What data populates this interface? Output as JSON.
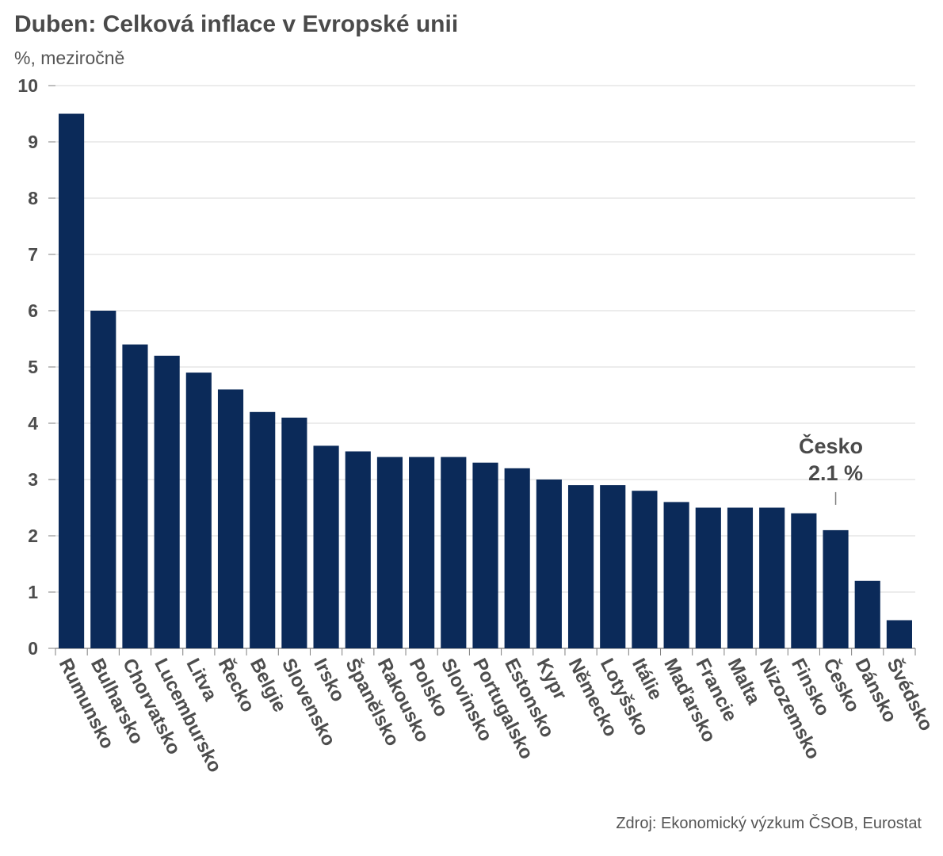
{
  "title": "Duben: Celková inflace v Evropské unii",
  "subtitle": "%, meziročně",
  "source": "Zdroj: Ekonomický výzkum ČSOB, Eurostat",
  "colors": {
    "bar": "#0b2a59",
    "grid": "#d9d9d9",
    "axis": "#7f7f7f",
    "text": "#4d4d4d"
  },
  "chart_data": {
    "type": "bar",
    "title": "Duben: Celková inflace v Evropské unii",
    "subtitle": "%, meziročně",
    "xlabel": "",
    "ylabel": "",
    "ylim": [
      0,
      10
    ],
    "yticks": [
      0,
      1,
      2,
      3,
      4,
      5,
      6,
      7,
      8,
      9,
      10
    ],
    "grid": true,
    "legend": "none",
    "categories": [
      "Rumunsko",
      "Bulharsko",
      "Chorvatsko",
      "Lucembursko",
      "Litva",
      "Řecko",
      "Belgie",
      "Slovensko",
      "Irsko",
      "Španělsko",
      "Rakousko",
      "Polsko",
      "Slovinsko",
      "Portugalsko",
      "Estonsko",
      "Kypr",
      "Německo",
      "Lotyšsko",
      "Itálie",
      "Maďarsko",
      "Francie",
      "Malta",
      "Nizozemsko",
      "Finsko",
      "Česko",
      "Dánsko",
      "Švédsko"
    ],
    "values": [
      9.5,
      6.0,
      5.4,
      5.2,
      4.9,
      4.6,
      4.2,
      4.1,
      3.6,
      3.5,
      3.4,
      3.4,
      3.4,
      3.3,
      3.2,
      3.0,
      2.9,
      2.9,
      2.8,
      2.6,
      2.5,
      2.5,
      2.5,
      2.4,
      2.1,
      1.2,
      0.5
    ],
    "annotation": {
      "category": "Česko",
      "label": "Česko",
      "value_label": "2.1 %"
    }
  }
}
